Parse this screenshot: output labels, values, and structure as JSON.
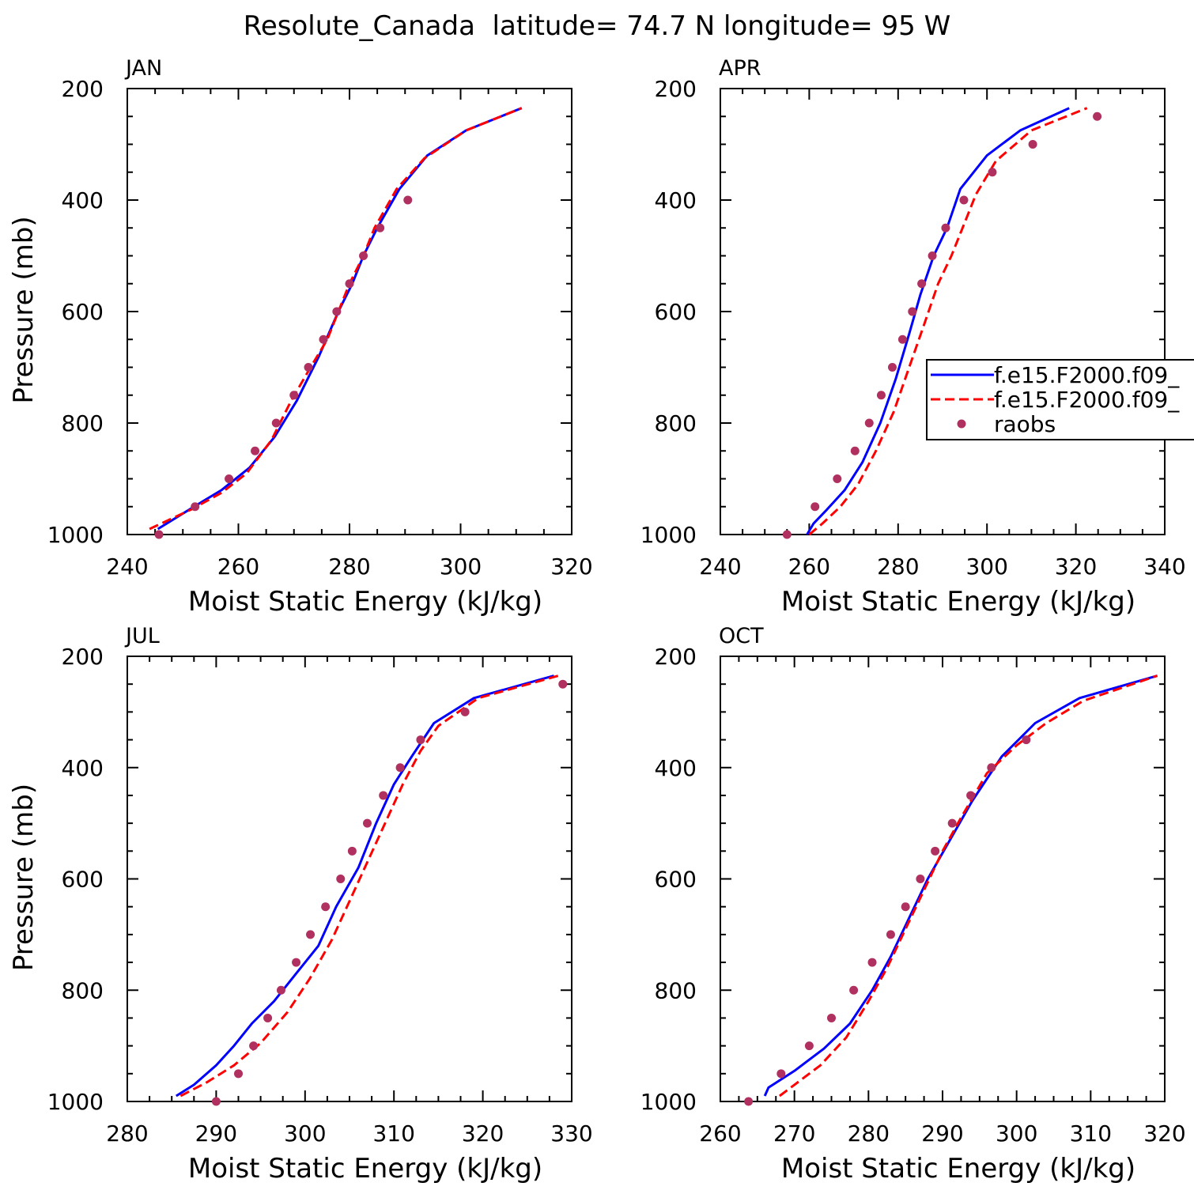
{
  "title": "Resolute_Canada  latitude= 74.7 N longitude= 95 W",
  "legend": {
    "entries": [
      "f.e15.F2000.f09_",
      "f.e15.F2000.f09_",
      "raobs"
    ]
  },
  "colors": {
    "model1": "#0000ff",
    "model2": "#ff0000",
    "raobs": "#b03060"
  },
  "chart_data": [
    {
      "type": "line",
      "panel_label": "JAN",
      "xlabel": "Moist Static Energy (kJ/kg)",
      "ylabel": "Pressure (mb)",
      "xlim": [
        240,
        320
      ],
      "ylim": [
        1000,
        200
      ],
      "xticks": [
        240,
        260,
        280,
        300,
        320
      ],
      "yticks": [
        200,
        400,
        600,
        800,
        1000
      ],
      "series": [
        {
          "name": "f.e15.F2000.f09_",
          "style": "solid",
          "points": [
            [
              245.5,
              990
            ],
            [
              252,
              950
            ],
            [
              257,
              920
            ],
            [
              262,
              880
            ],
            [
              266.5,
              825
            ],
            [
              270.5,
              760
            ],
            [
              274.5,
              680
            ],
            [
              278,
              600
            ],
            [
              280.5,
              550
            ],
            [
              282.5,
              500
            ],
            [
              285,
              450
            ],
            [
              289,
              380
            ],
            [
              294,
              320
            ],
            [
              301,
              275
            ],
            [
              311,
              235
            ]
          ]
        },
        {
          "name": "f.e15.F2000.f09_",
          "style": "dashed",
          "points": [
            [
              244,
              990
            ],
            [
              251.5,
              955
            ],
            [
              257,
              925
            ],
            [
              261.5,
              890
            ],
            [
              266,
              830
            ],
            [
              269.5,
              760
            ],
            [
              273,
              700
            ],
            [
              276,
              650
            ],
            [
              278,
              600
            ],
            [
              280,
              550
            ],
            [
              282.5,
              500
            ],
            [
              284.5,
              450
            ],
            [
              288.5,
              380
            ],
            [
              293.5,
              325
            ],
            [
              301,
              275
            ],
            [
              311,
              235
            ]
          ]
        },
        {
          "name": "raobs",
          "style": "dots",
          "points": [
            [
              245.7,
              1000
            ],
            [
              252.2,
              950
            ],
            [
              258.3,
              900
            ],
            [
              263,
              850
            ],
            [
              266.8,
              800
            ],
            [
              270,
              750
            ],
            [
              272.6,
              700
            ],
            [
              275.3,
              650
            ],
            [
              277.7,
              600
            ],
            [
              280,
              550
            ],
            [
              282.5,
              500
            ],
            [
              285.5,
              450
            ],
            [
              290.5,
              400
            ]
          ]
        }
      ]
    },
    {
      "type": "line",
      "panel_label": "APR",
      "xlabel": "Moist Static Energy (kJ/kg)",
      "ylabel": "",
      "xlim": [
        240,
        340
      ],
      "ylim": [
        1000,
        200
      ],
      "xticks": [
        240,
        260,
        280,
        300,
        320,
        340
      ],
      "yticks": [
        200,
        400,
        600,
        800,
        1000
      ],
      "series": [
        {
          "name": "f.e15.F2000.f09_",
          "style": "solid",
          "points": [
            [
              259.5,
              1000
            ],
            [
              261,
              980
            ],
            [
              264,
              955
            ],
            [
              268,
              920
            ],
            [
              272,
              870
            ],
            [
              276,
              800
            ],
            [
              279.5,
              720
            ],
            [
              282.5,
              640
            ],
            [
              285,
              570
            ],
            [
              288,
              500
            ],
            [
              291,
              450
            ],
            [
              294,
              380
            ],
            [
              300,
              320
            ],
            [
              307.5,
              275
            ],
            [
              318.5,
              235
            ]
          ]
        },
        {
          "name": "f.e15.F2000.f09_",
          "style": "dashed",
          "points": [
            [
              260,
              1000
            ],
            [
              263,
              980
            ],
            [
              267,
              950
            ],
            [
              271,
              910
            ],
            [
              275,
              850
            ],
            [
              279,
              780
            ],
            [
              282.5,
              700
            ],
            [
              286,
              620
            ],
            [
              289,
              550
            ],
            [
              292,
              500
            ],
            [
              294.5,
              450
            ],
            [
              297.5,
              390
            ],
            [
              302,
              330
            ],
            [
              310,
              275
            ],
            [
              322.5,
              235
            ]
          ]
        },
        {
          "name": "raobs",
          "style": "dots",
          "points": [
            [
              255,
              1000
            ],
            [
              261.3,
              950
            ],
            [
              266.3,
              900
            ],
            [
              270.3,
              850
            ],
            [
              273.5,
              800
            ],
            [
              276.2,
              750
            ],
            [
              278.7,
              700
            ],
            [
              281,
              650
            ],
            [
              283.2,
              600
            ],
            [
              285.3,
              550
            ],
            [
              287.7,
              500
            ],
            [
              290.7,
              450
            ],
            [
              294.8,
              400
            ],
            [
              301.2,
              350
            ],
            [
              310.3,
              300
            ],
            [
              324.8,
              250
            ]
          ]
        }
      ]
    },
    {
      "type": "line",
      "panel_label": "JUL",
      "xlabel": "Moist Static Energy (kJ/kg)",
      "ylabel": "Pressure (mb)",
      "xlim": [
        280,
        330
      ],
      "ylim": [
        1000,
        200
      ],
      "xticks": [
        280,
        290,
        300,
        310,
        320,
        330
      ],
      "yticks": [
        200,
        400,
        600,
        800,
        1000
      ],
      "series": [
        {
          "name": "f.e15.F2000.f09_",
          "style": "solid",
          "points": [
            [
              285.5,
              990
            ],
            [
              287.5,
              970
            ],
            [
              290,
              935
            ],
            [
              292,
              900
            ],
            [
              294,
              860
            ],
            [
              296.5,
              820
            ],
            [
              299,
              770
            ],
            [
              301.5,
              720
            ],
            [
              303.5,
              650
            ],
            [
              306,
              580
            ],
            [
              308,
              500
            ],
            [
              310,
              430
            ],
            [
              312,
              380
            ],
            [
              314.5,
              320
            ],
            [
              319,
              275
            ],
            [
              328,
              235
            ]
          ]
        },
        {
          "name": "f.e15.F2000.f09_",
          "style": "dashed",
          "points": [
            [
              286,
              990
            ],
            [
              289,
              965
            ],
            [
              292,
              935
            ],
            [
              295,
              895
            ],
            [
              298,
              840
            ],
            [
              300.5,
              780
            ],
            [
              303,
              710
            ],
            [
              305,
              640
            ],
            [
              307,
              570
            ],
            [
              309,
              500
            ],
            [
              311,
              430
            ],
            [
              313,
              370
            ],
            [
              315,
              325
            ],
            [
              319.5,
              275
            ],
            [
              328.5,
              235
            ]
          ]
        },
        {
          "name": "raobs",
          "style": "dots",
          "points": [
            [
              290,
              1000
            ],
            [
              292.5,
              950
            ],
            [
              294.2,
              900
            ],
            [
              295.8,
              850
            ],
            [
              297.3,
              800
            ],
            [
              299,
              750
            ],
            [
              300.6,
              700
            ],
            [
              302.3,
              650
            ],
            [
              304,
              600
            ],
            [
              305.3,
              550
            ],
            [
              307,
              500
            ],
            [
              308.8,
              450
            ],
            [
              310.7,
              400
            ],
            [
              313,
              350
            ],
            [
              318,
              300
            ],
            [
              329,
              250
            ]
          ]
        }
      ]
    },
    {
      "type": "line",
      "panel_label": "OCT",
      "xlabel": "Moist Static Energy (kJ/kg)",
      "ylabel": "",
      "xlim": [
        260,
        320
      ],
      "ylim": [
        1000,
        200
      ],
      "xticks": [
        260,
        270,
        280,
        290,
        300,
        310,
        320
      ],
      "yticks": [
        200,
        400,
        600,
        800,
        1000
      ],
      "series": [
        {
          "name": "f.e15.F2000.f09_",
          "style": "solid",
          "points": [
            [
              266,
              990
            ],
            [
              266.5,
              975
            ],
            [
              270,
              945
            ],
            [
              274,
              905
            ],
            [
              277.5,
              860
            ],
            [
              280.5,
              800
            ],
            [
              283,
              740
            ],
            [
              285.5,
              670
            ],
            [
              288,
              600
            ],
            [
              291,
              530
            ],
            [
              294,
              460
            ],
            [
              298,
              380
            ],
            [
              302.5,
              320
            ],
            [
              308.5,
              275
            ],
            [
              319,
              235
            ]
          ]
        },
        {
          "name": "f.e15.F2000.f09_",
          "style": "dashed",
          "points": [
            [
              268,
              990
            ],
            [
              270,
              970
            ],
            [
              273.5,
              935
            ],
            [
              277,
              885
            ],
            [
              280,
              820
            ],
            [
              282.5,
              760
            ],
            [
              285,
              690
            ],
            [
              287.5,
              620
            ],
            [
              290,
              550
            ],
            [
              292.5,
              490
            ],
            [
              296,
              410
            ],
            [
              300,
              360
            ],
            [
              304,
              320
            ],
            [
              309,
              280
            ],
            [
              319,
              235
            ]
          ]
        },
        {
          "name": "raobs",
          "style": "dots",
          "points": [
            [
              263.8,
              1000
            ],
            [
              268.2,
              950
            ],
            [
              272,
              900
            ],
            [
              275,
              850
            ],
            [
              278,
              800
            ],
            [
              280.5,
              750
            ],
            [
              283,
              700
            ],
            [
              285,
              650
            ],
            [
              287,
              600
            ],
            [
              289,
              550
            ],
            [
              291.3,
              500
            ],
            [
              293.8,
              450
            ],
            [
              296.6,
              400
            ],
            [
              301.3,
              350
            ]
          ]
        }
      ]
    }
  ]
}
